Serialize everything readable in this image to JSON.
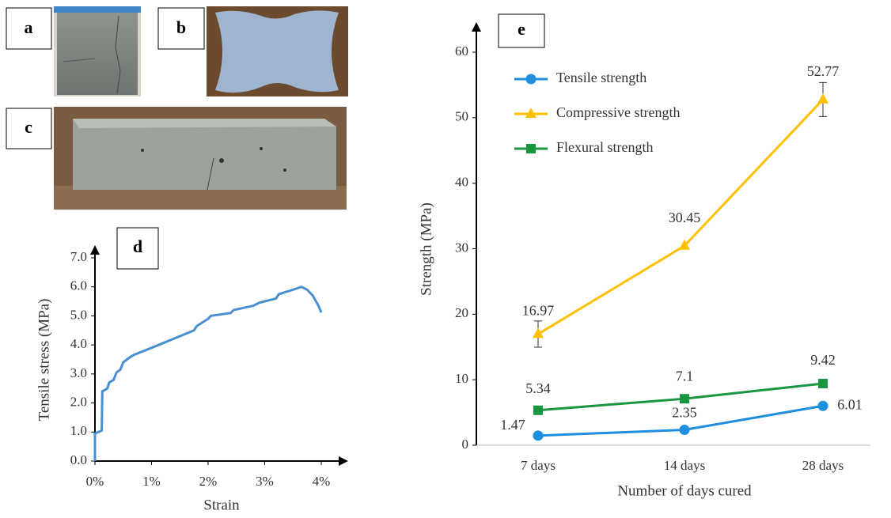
{
  "photo_labels": [
    "a",
    "b",
    "c"
  ],
  "chart_data": [
    {
      "type": "line",
      "panel_label": "d",
      "xlabel": "Strain",
      "ylabel": "Tensile stress (MPa)",
      "x": [
        0,
        0,
        0.12,
        0.13,
        0.22,
        0.25,
        0.33,
        0.38,
        0.45,
        0.5,
        0.6,
        0.68,
        1.0,
        1.5,
        1.75,
        1.8,
        2.0,
        2.05,
        2.4,
        2.45,
        2.8,
        2.9,
        3.2,
        3.25,
        3.5,
        3.65,
        3.75,
        3.85,
        3.95,
        4.0
      ],
      "values": [
        0,
        0.95,
        1.05,
        2.4,
        2.5,
        2.7,
        2.8,
        3.05,
        3.15,
        3.4,
        3.55,
        3.65,
        3.9,
        4.3,
        4.5,
        4.65,
        4.9,
        5.0,
        5.1,
        5.2,
        5.35,
        5.45,
        5.6,
        5.75,
        5.9,
        6.0,
        5.9,
        5.7,
        5.35,
        5.12
      ],
      "color": "#4a8fd0",
      "xlim": [
        0,
        4
      ],
      "xticks": [
        {
          "value": 0,
          "label": "0%"
        },
        {
          "value": 1,
          "label": "1%"
        },
        {
          "value": 2,
          "label": "2%"
        },
        {
          "value": 3,
          "label": "3%"
        },
        {
          "value": 4,
          "label": "4%"
        }
      ],
      "ylim": [
        0,
        7
      ],
      "yticks": [
        {
          "value": 0,
          "label": "0.0"
        },
        {
          "value": 1,
          "label": "1.0"
        },
        {
          "value": 2,
          "label": "2.0"
        },
        {
          "value": 3,
          "label": "3.0"
        },
        {
          "value": 4,
          "label": "4.0"
        },
        {
          "value": 5,
          "label": "5.0"
        },
        {
          "value": 6,
          "label": "6.0"
        },
        {
          "value": 7,
          "label": "7.0"
        }
      ]
    },
    {
      "type": "line",
      "panel_label": "e",
      "xlabel": "Number of days cured",
      "ylabel": "Strength (MPa)",
      "categories": [
        "7 days",
        "14 days",
        "28 days"
      ],
      "series": [
        {
          "name": "Tensile strength",
          "color": "#1e8ede",
          "marker": "circle",
          "values": [
            1.47,
            2.35,
            6.01
          ]
        },
        {
          "name": "Compressive strength",
          "color": "#ffc000",
          "marker": "triangle",
          "values": [
            16.97,
            30.45,
            52.77
          ],
          "errors": [
            2.0,
            null,
            2.6
          ]
        },
        {
          "name": "Flexural strength",
          "color": "#1a9641",
          "marker": "square",
          "values": [
            5.34,
            7.1,
            9.42
          ]
        }
      ],
      "legend": "upper left",
      "ylim": [
        0,
        60
      ],
      "yticks": [
        0,
        10,
        20,
        30,
        40,
        50,
        60
      ]
    }
  ]
}
